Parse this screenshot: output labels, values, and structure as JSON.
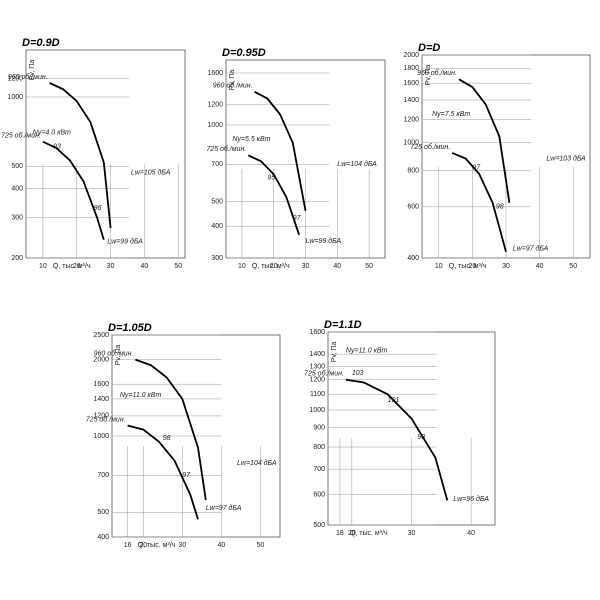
{
  "chart_data": [
    {
      "type": "line",
      "title": "D=0.9D",
      "ylabel": "Pv, Па",
      "xlabel": "Q, тыс. м³/ч",
      "yscale": "log",
      "grid": true,
      "xlim": [
        5,
        52
      ],
      "xticks": [
        10,
        20,
        30,
        40,
        50
      ],
      "ylim": [
        200,
        1600
      ],
      "yticks": [
        200,
        300,
        400,
        500,
        1000,
        1200
      ],
      "series": [
        {
          "name": "960 об./мин.",
          "color": "#000000",
          "x": [
            12,
            16,
            20,
            24,
            28,
            30
          ],
          "values": [
            1150,
            1080,
            960,
            780,
            520,
            270
          ]
        },
        {
          "name": "725 об./мин.",
          "color": "#000000",
          "x": [
            10,
            14,
            18,
            22,
            26,
            28
          ],
          "values": [
            640,
            600,
            530,
            430,
            300,
            240
          ]
        }
      ],
      "annotations": [
        {
          "text": "Ny=4.0 кВт",
          "x": 7,
          "y": 700
        },
        {
          "text": "Lw=105 дБА",
          "x": 36,
          "y": 470
        },
        {
          "text": "Lw=99 дБА",
          "x": 29,
          "y": 235
        },
        {
          "text": "93",
          "x": 13,
          "y": 610
        },
        {
          "text": "96",
          "x": 25,
          "y": 330
        }
      ]
    },
    {
      "type": "line",
      "title": "D=0.95D",
      "ylabel": "Pv, Па",
      "xlabel": "Q, тыс. м³/ч",
      "yscale": "log",
      "grid": true,
      "xlim": [
        5,
        55
      ],
      "xticks": [
        10,
        20,
        30,
        40,
        50
      ],
      "ylim": [
        300,
        1800
      ],
      "yticks": [
        300,
        400,
        500,
        700,
        1000,
        1200,
        1600
      ],
      "series": [
        {
          "name": "960 об./мин.",
          "color": "#000000",
          "x": [
            14,
            18,
            22,
            26,
            30
          ],
          "values": [
            1350,
            1270,
            1100,
            850,
            460
          ]
        },
        {
          "name": "725 об./мин.",
          "color": "#000000",
          "x": [
            12,
            16,
            20,
            24,
            28
          ],
          "values": [
            760,
            720,
            640,
            520,
            370
          ]
        }
      ],
      "annotations": [
        {
          "text": "Ny=5.5 кВт",
          "x": 7,
          "y": 880
        },
        {
          "text": "Lw=104 дБА",
          "x": 40,
          "y": 700
        },
        {
          "text": "Lw=99 дБА",
          "x": 30,
          "y": 350
        },
        {
          "text": "95",
          "x": 18,
          "y": 620
        },
        {
          "text": "97",
          "x": 26,
          "y": 430
        }
      ]
    },
    {
      "type": "line",
      "title": "D=D",
      "ylabel": "Pv, Па",
      "xlabel": "Q, тыс. м³/ч",
      "yscale": "log",
      "grid": true,
      "xlim": [
        5,
        55
      ],
      "xticks": [
        10,
        20,
        30,
        40,
        50
      ],
      "ylim": [
        400,
        2000
      ],
      "yticks": [
        400,
        600,
        800,
        1000,
        1200,
        1400,
        1600,
        1800,
        2000
      ],
      "series": [
        {
          "name": "960 об./мин.",
          "color": "#000000",
          "x": [
            16,
            20,
            24,
            28,
            31
          ],
          "values": [
            1650,
            1550,
            1350,
            1050,
            620
          ]
        },
        {
          "name": "725 об./мин.",
          "color": "#000000",
          "x": [
            14,
            18,
            22,
            26,
            30
          ],
          "values": [
            920,
            880,
            780,
            620,
            420
          ]
        }
      ],
      "annotations": [
        {
          "text": "Ny=7.5 кВт",
          "x": 8,
          "y": 1250
        },
        {
          "text": "Lw=103 дБА",
          "x": 42,
          "y": 880
        },
        {
          "text": "Lw=97 дБА",
          "x": 32,
          "y": 430
        },
        {
          "text": "97",
          "x": 20,
          "y": 820
        },
        {
          "text": "98",
          "x": 27,
          "y": 600
        }
      ]
    },
    {
      "type": "line",
      "title": "D=1.05D",
      "ylabel": "Pv, Па",
      "xlabel": "Q, тыс. м³/ч",
      "yscale": "log",
      "grid": true,
      "xlim": [
        12,
        55
      ],
      "xticks": [
        16,
        20,
        30,
        40,
        50
      ],
      "ylim": [
        400,
        2500
      ],
      "yticks": [
        400,
        500,
        700,
        1000,
        1200,
        1400,
        1600,
        2000,
        2500
      ],
      "series": [
        {
          "name": "960 об./мин.",
          "color": "#000000",
          "x": [
            18,
            22,
            26,
            30,
            34,
            36
          ],
          "values": [
            2000,
            1900,
            1700,
            1400,
            900,
            560
          ]
        },
        {
          "name": "725 об./мин.",
          "color": "#000000",
          "x": [
            16,
            20,
            24,
            28,
            32,
            34
          ],
          "values": [
            1100,
            1060,
            950,
            800,
            590,
            470
          ]
        }
      ],
      "annotations": [
        {
          "text": "Ny=11.0 кВт",
          "x": 14,
          "y": 1450
        },
        {
          "text": "Lw=104 дБА",
          "x": 44,
          "y": 780
        },
        {
          "text": "Lw=97 дБА",
          "x": 36,
          "y": 520
        },
        {
          "text": "98",
          "x": 25,
          "y": 980
        },
        {
          "text": "97",
          "x": 30,
          "y": 700
        }
      ]
    },
    {
      "type": "line",
      "title": "D=1.1D",
      "ylabel": "Pv, Па",
      "xlabel": "Q, тыс. м³/ч",
      "yscale": "log",
      "grid": true,
      "xlim": [
        16,
        44
      ],
      "xticks": [
        18,
        20,
        30,
        40
      ],
      "ylim": [
        500,
        1600
      ],
      "yticks": [
        500,
        600,
        700,
        800,
        900,
        1000,
        1100,
        1200,
        1300,
        1400,
        1600
      ],
      "series": [
        {
          "name": "725 об./мин.",
          "color": "#000000",
          "x": [
            19,
            22,
            26,
            30,
            34,
            36
          ],
          "values": [
            1200,
            1180,
            1100,
            950,
            750,
            580
          ]
        }
      ],
      "annotations": [
        {
          "text": "Ny=11.0 кВт",
          "x": 19,
          "y": 1430
        },
        {
          "text": "Lw=96 дБА",
          "x": 37,
          "y": 585
        },
        {
          "text": "103",
          "x": 20,
          "y": 1250
        },
        {
          "text": "101",
          "x": 26,
          "y": 1060
        },
        {
          "text": "98",
          "x": 31,
          "y": 850
        }
      ]
    }
  ]
}
